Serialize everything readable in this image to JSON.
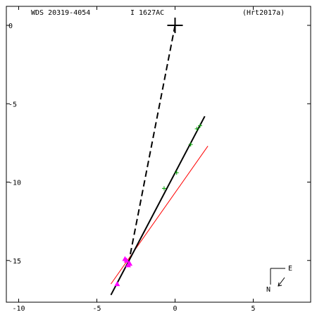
{
  "header": {
    "wds_id": "WDS 20319-4054",
    "discoverer": "I  1627AC",
    "reference": "(Hrt2017a)"
  },
  "compass": {
    "north_label": "N",
    "east_label": "E"
  },
  "chart_data": {
    "type": "scatter",
    "title": "",
    "xlabel": "",
    "ylabel": "",
    "xlim": [
      -11,
      9
    ],
    "ylim": [
      -18.2,
      0.6
    ],
    "x_ticks": [
      -10,
      -5,
      0,
      5
    ],
    "y_ticks": [
      0,
      -5,
      -10,
      -15
    ],
    "primary_star": [
      0,
      0
    ],
    "observations_green": [
      [
        1.6,
        -6.4
      ],
      [
        1.4,
        -6.6
      ],
      [
        1.0,
        -7.6
      ],
      [
        0.1,
        -9.4
      ],
      [
        -0.7,
        -10.4
      ]
    ],
    "observations_magenta": [
      [
        -3.1,
        -15.0
      ],
      [
        -3.2,
        -14.9
      ],
      [
        -3.0,
        -15.3
      ],
      [
        -2.9,
        -15.2
      ],
      [
        -3.7,
        -16.5
      ]
    ],
    "fit_orbit_black": [
      [
        -4.1,
        -17.2
      ],
      [
        1.9,
        -5.8
      ]
    ],
    "fit_orbit_red": [
      [
        -4.1,
        -16.5
      ],
      [
        2.1,
        -7.7
      ]
    ],
    "node_line_dashed": [
      [
        0,
        0
      ],
      [
        -2.9,
        -14.8
      ]
    ],
    "colors": {
      "green": "#00a000",
      "magenta": "#ff00ff",
      "red": "#ff0000",
      "black": "#000000"
    }
  }
}
